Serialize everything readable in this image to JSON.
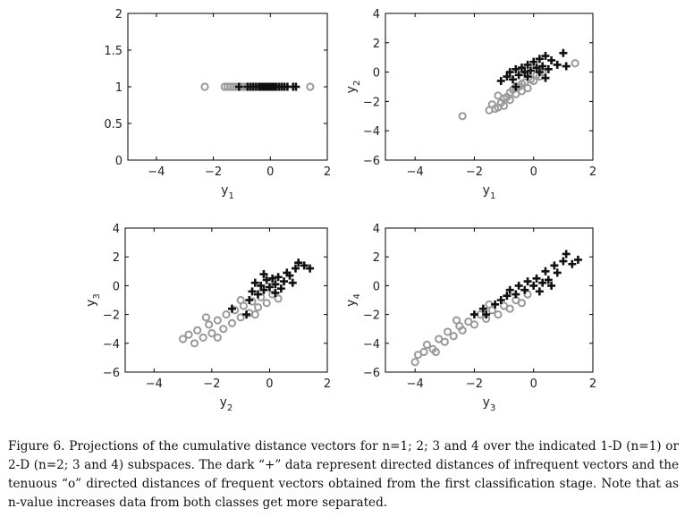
{
  "chart_data": [
    {
      "type": "scatter",
      "xlabel": {
        "base": "y",
        "sub": "1"
      },
      "ylabel": {
        "base": "",
        "sub": ""
      },
      "xlim": [
        -5,
        2
      ],
      "ylim": [
        0,
        2
      ],
      "xticks": [
        -4,
        -2,
        0,
        2
      ],
      "yticks": [
        0,
        0.5,
        1,
        1.5,
        2
      ],
      "series": [
        {
          "marker": "o",
          "color": "#9a9a9a",
          "points": [
            [
              -2.3,
              1
            ],
            [
              -1.6,
              1
            ],
            [
              -1.5,
              1
            ],
            [
              -1.4,
              1
            ],
            [
              -1.3,
              1
            ],
            [
              -1.2,
              1
            ],
            [
              -1.1,
              1
            ],
            [
              -1.0,
              1
            ],
            [
              -0.9,
              1
            ],
            [
              -0.8,
              1
            ],
            [
              -0.7,
              1
            ],
            [
              -0.6,
              1
            ],
            [
              -0.5,
              1
            ],
            [
              -0.4,
              1
            ],
            [
              -0.3,
              1
            ],
            [
              -0.2,
              1
            ],
            [
              -0.1,
              1
            ],
            [
              0.0,
              1
            ],
            [
              0.1,
              1
            ],
            [
              0.2,
              1
            ],
            [
              0.3,
              1
            ],
            [
              0.4,
              1
            ],
            [
              1.4,
              1
            ]
          ]
        },
        {
          "marker": "+",
          "color": "#111111",
          "points": [
            [
              -1.1,
              1
            ],
            [
              -0.8,
              1
            ],
            [
              -0.7,
              1
            ],
            [
              -0.6,
              1
            ],
            [
              -0.5,
              1
            ],
            [
              -0.4,
              1
            ],
            [
              -0.35,
              1
            ],
            [
              -0.3,
              1
            ],
            [
              -0.25,
              1
            ],
            [
              -0.2,
              1
            ],
            [
              -0.15,
              1
            ],
            [
              -0.1,
              1
            ],
            [
              -0.05,
              1
            ],
            [
              0.0,
              1
            ],
            [
              0.05,
              1
            ],
            [
              0.1,
              1
            ],
            [
              0.15,
              1
            ],
            [
              0.2,
              1
            ],
            [
              0.3,
              1
            ],
            [
              0.4,
              1
            ],
            [
              0.5,
              1
            ],
            [
              0.6,
              1
            ],
            [
              0.8,
              1
            ],
            [
              0.9,
              1
            ]
          ]
        }
      ]
    },
    {
      "type": "scatter",
      "xlabel": {
        "base": "y",
        "sub": "1"
      },
      "ylabel": {
        "base": "y",
        "sub": "2"
      },
      "xlim": [
        -5,
        2
      ],
      "ylim": [
        -6,
        4
      ],
      "xticks": [
        -4,
        -2,
        0,
        2
      ],
      "yticks": [
        -6,
        -4,
        -2,
        0,
        2,
        4
      ],
      "series": [
        {
          "marker": "o",
          "color": "#9a9a9a",
          "points": [
            [
              -2.4,
              -3.0
            ],
            [
              -1.5,
              -2.6
            ],
            [
              -1.4,
              -2.2
            ],
            [
              -1.3,
              -2.5
            ],
            [
              -1.2,
              -1.6
            ],
            [
              -1.1,
              -2.1
            ],
            [
              -1.0,
              -2.3
            ],
            [
              -0.9,
              -1.7
            ],
            [
              -0.8,
              -1.9
            ],
            [
              -0.7,
              -1.2
            ],
            [
              -0.6,
              -1.5
            ],
            [
              -0.5,
              -1.0
            ],
            [
              -0.4,
              -1.3
            ],
            [
              -0.3,
              -0.7
            ],
            [
              -0.2,
              -1.1
            ],
            [
              -0.1,
              -0.5
            ],
            [
              0.0,
              -0.6
            ],
            [
              0.1,
              -0.2
            ],
            [
              0.2,
              -0.3
            ],
            [
              0.3,
              0.0
            ],
            [
              -1.2,
              -2.4
            ],
            [
              -1.0,
              -1.8
            ],
            [
              -0.8,
              -1.4
            ],
            [
              -0.6,
              -1.0
            ],
            [
              -0.4,
              -0.8
            ],
            [
              1.4,
              0.6
            ]
          ]
        },
        {
          "marker": "+",
          "color": "#111111",
          "points": [
            [
              -1.1,
              -0.6
            ],
            [
              -0.9,
              -0.3
            ],
            [
              -0.8,
              0.0
            ],
            [
              -0.7,
              -0.5
            ],
            [
              -0.6,
              0.2
            ],
            [
              -0.5,
              -0.2
            ],
            [
              -0.4,
              0.3
            ],
            [
              -0.3,
              0.0
            ],
            [
              -0.2,
              0.5
            ],
            [
              -0.1,
              0.1
            ],
            [
              0.0,
              0.7
            ],
            [
              0.1,
              0.3
            ],
            [
              0.2,
              0.9
            ],
            [
              0.3,
              0.4
            ],
            [
              0.4,
              1.1
            ],
            [
              0.5,
              0.2
            ],
            [
              0.6,
              0.8
            ],
            [
              0.8,
              0.5
            ],
            [
              1.0,
              1.3
            ],
            [
              0.4,
              -0.4
            ],
            [
              -0.6,
              -1.0
            ],
            [
              1.1,
              0.4
            ],
            [
              0.2,
              0.0
            ],
            [
              -0.2,
              -0.3
            ]
          ]
        }
      ]
    },
    {
      "type": "scatter",
      "xlabel": {
        "base": "y",
        "sub": "2"
      },
      "ylabel": {
        "base": "y",
        "sub": "3"
      },
      "xlim": [
        -5,
        2
      ],
      "ylim": [
        -6,
        4
      ],
      "xticks": [
        -4,
        -2,
        0,
        2
      ],
      "yticks": [
        -6,
        -4,
        -2,
        0,
        2,
        4
      ],
      "series": [
        {
          "marker": "o",
          "color": "#9a9a9a",
          "points": [
            [
              -3.0,
              -3.7
            ],
            [
              -2.8,
              -3.4
            ],
            [
              -2.6,
              -4.0
            ],
            [
              -2.5,
              -3.1
            ],
            [
              -2.3,
              -3.6
            ],
            [
              -2.1,
              -2.7
            ],
            [
              -2.0,
              -3.3
            ],
            [
              -1.8,
              -2.4
            ],
            [
              -1.6,
              -3.0
            ],
            [
              -1.5,
              -2.0
            ],
            [
              -1.3,
              -2.6
            ],
            [
              -1.2,
              -1.7
            ],
            [
              -1.0,
              -2.2
            ],
            [
              -0.9,
              -1.4
            ],
            [
              -0.7,
              -1.9
            ],
            [
              -0.6,
              -1.1
            ],
            [
              -0.4,
              -1.5
            ],
            [
              -0.3,
              -0.8
            ],
            [
              -0.1,
              -1.2
            ],
            [
              0.1,
              -0.6
            ],
            [
              0.3,
              -0.9
            ],
            [
              -2.2,
              -2.2
            ],
            [
              -1.8,
              -3.6
            ],
            [
              -1.0,
              -1.0
            ],
            [
              -0.5,
              -2.0
            ]
          ]
        },
        {
          "marker": "+",
          "color": "#111111",
          "points": [
            [
              -1.3,
              -1.6
            ],
            [
              -0.8,
              -2.0
            ],
            [
              -0.6,
              -0.4
            ],
            [
              -0.5,
              0.2
            ],
            [
              -0.4,
              -0.6
            ],
            [
              -0.3,
              0.0
            ],
            [
              -0.2,
              -0.3
            ],
            [
              -0.1,
              0.4
            ],
            [
              0.0,
              -0.1
            ],
            [
              0.1,
              0.5
            ],
            [
              0.2,
              0.1
            ],
            [
              0.3,
              0.6
            ],
            [
              0.4,
              -0.2
            ],
            [
              0.5,
              0.3
            ],
            [
              0.6,
              0.9
            ],
            [
              0.7,
              0.7
            ],
            [
              0.9,
              1.2
            ],
            [
              1.0,
              1.6
            ],
            [
              1.2,
              1.4
            ],
            [
              1.4,
              1.2
            ],
            [
              -0.7,
              -1.0
            ],
            [
              0.2,
              -0.5
            ],
            [
              -0.2,
              0.8
            ],
            [
              0.8,
              0.2
            ]
          ]
        }
      ]
    },
    {
      "type": "scatter",
      "xlabel": {
        "base": "y",
        "sub": "3"
      },
      "ylabel": {
        "base": "y",
        "sub": "4"
      },
      "xlim": [
        -5,
        2
      ],
      "ylim": [
        -6,
        4
      ],
      "xticks": [
        -4,
        -2,
        0,
        2
      ],
      "yticks": [
        -6,
        -4,
        -2,
        0,
        2,
        4
      ],
      "series": [
        {
          "marker": "o",
          "color": "#9a9a9a",
          "points": [
            [
              -4.0,
              -5.3
            ],
            [
              -3.9,
              -4.8
            ],
            [
              -3.7,
              -4.6
            ],
            [
              -3.6,
              -4.1
            ],
            [
              -3.4,
              -4.4
            ],
            [
              -3.2,
              -3.7
            ],
            [
              -3.0,
              -3.9
            ],
            [
              -2.9,
              -3.2
            ],
            [
              -2.7,
              -3.5
            ],
            [
              -2.5,
              -2.8
            ],
            [
              -2.4,
              -3.1
            ],
            [
              -2.2,
              -2.5
            ],
            [
              -2.0,
              -2.7
            ],
            [
              -1.8,
              -2.0
            ],
            [
              -1.6,
              -2.3
            ],
            [
              -1.4,
              -1.7
            ],
            [
              -1.2,
              -2.0
            ],
            [
              -1.0,
              -1.4
            ],
            [
              -0.8,
              -1.6
            ],
            [
              -0.6,
              -1.0
            ],
            [
              -0.4,
              -1.2
            ],
            [
              -2.6,
              -2.4
            ],
            [
              -3.3,
              -4.6
            ],
            [
              -1.5,
              -1.3
            ],
            [
              -0.2,
              -0.6
            ]
          ]
        },
        {
          "marker": "+",
          "color": "#111111",
          "points": [
            [
              -2.0,
              -2.0
            ],
            [
              -1.7,
              -1.6
            ],
            [
              -1.6,
              -2.0
            ],
            [
              -1.3,
              -1.3
            ],
            [
              -0.9,
              -0.7
            ],
            [
              -0.8,
              -0.3
            ],
            [
              -0.6,
              -0.6
            ],
            [
              -0.5,
              0.0
            ],
            [
              -0.3,
              -0.3
            ],
            [
              -0.2,
              0.3
            ],
            [
              0.0,
              0.0
            ],
            [
              0.1,
              0.5
            ],
            [
              0.3,
              0.2
            ],
            [
              0.4,
              1.0
            ],
            [
              0.5,
              0.4
            ],
            [
              0.7,
              1.4
            ],
            [
              0.8,
              0.9
            ],
            [
              1.0,
              1.7
            ],
            [
              1.1,
              2.2
            ],
            [
              1.3,
              1.5
            ],
            [
              1.5,
              1.8
            ],
            [
              0.2,
              -0.4
            ],
            [
              -1.1,
              -1.0
            ],
            [
              0.6,
              0.0
            ]
          ]
        }
      ]
    }
  ],
  "caption": "Figure 6.  Projections of the cumulative distance vectors for n=1; 2; 3 and 4 over the indicated 1-D (n=1) or 2-D (n=2; 3 and 4) subspaces. The dark “+” data represent directed distances of infrequent vectors and the tenuous “o” directed distances of frequent vectors obtained from the first classification stage. Note that as n-value increases data from both classes get more separated."
}
